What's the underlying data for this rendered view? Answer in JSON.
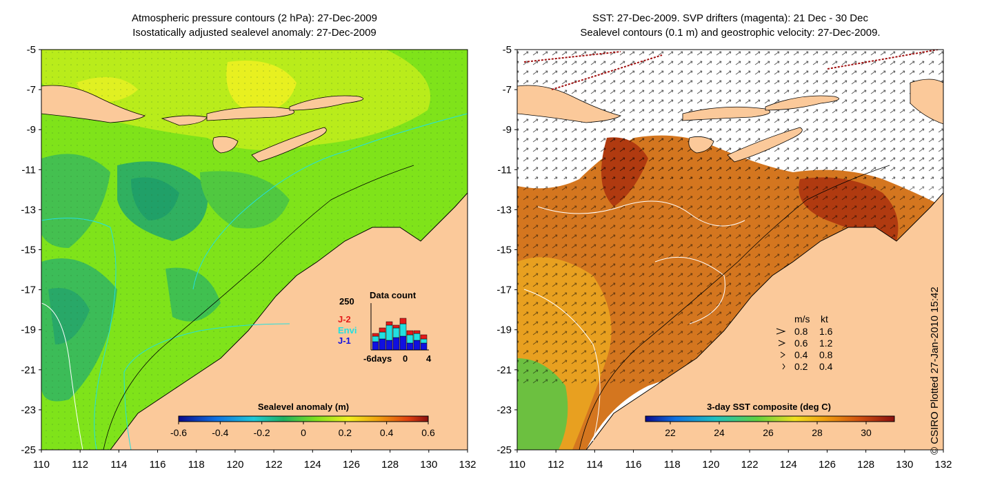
{
  "left_panel": {
    "title_line1": "Atmospheric pressure contours (2 hPa): 27-Dec-2009",
    "title_line2": "Isostatically adjusted sealevel anomaly: 27-Dec-2009",
    "colorbar_label": "Sealevel anomaly (m)",
    "colorbar_ticks": [
      "-0.6",
      "-0.4",
      "-0.2",
      "0",
      "0.2",
      "0.4",
      "0.6"
    ],
    "inset": {
      "title": "Data count",
      "ymax_label": "250",
      "legend": [
        {
          "label": "J-2",
          "color": "#e41a1a"
        },
        {
          "label": "Envi",
          "color": "#22e0e0"
        },
        {
          "label": "J-1",
          "color": "#1010e0"
        }
      ],
      "x_labels": [
        "-6days",
        "0",
        "4"
      ]
    }
  },
  "right_panel": {
    "title_line1": "SST: 27-Dec-2009. SVP drifters (magenta): 21 Dec - 30 Dec",
    "title_line2": "Sealevel contours (0.1 m) and geostrophic velocity: 27-Dec-2009.",
    "colorbar_label": "3-day SST composite (deg C)",
    "colorbar_ticks": [
      "22",
      "24",
      "26",
      "28",
      "30"
    ],
    "velocity_legend": {
      "header_ms": "m/s",
      "header_kt": "kt",
      "rows": [
        {
          "ms": "0.8",
          "kt": "1.6"
        },
        {
          "ms": "0.6",
          "kt": "1.2"
        },
        {
          "ms": "0.4",
          "kt": "0.8"
        },
        {
          "ms": "0.2",
          "kt": "0.4"
        }
      ]
    }
  },
  "axes": {
    "y_labels": [
      "-5",
      "-7",
      "-9",
      "-11",
      "-13",
      "-15",
      "-17",
      "-19",
      "-21",
      "-23",
      "-25"
    ],
    "x_labels": [
      "110",
      "112",
      "114",
      "116",
      "118",
      "120",
      "122",
      "124",
      "126",
      "128",
      "130",
      "132"
    ]
  },
  "credit": "© CSIRO Plotted 27-Jan-2010 15:42",
  "colors": {
    "land": "#fbc99a",
    "anomaly_base": "#7fe31a",
    "sst_base": "#d4761f",
    "cloud": "#ffffff"
  }
}
